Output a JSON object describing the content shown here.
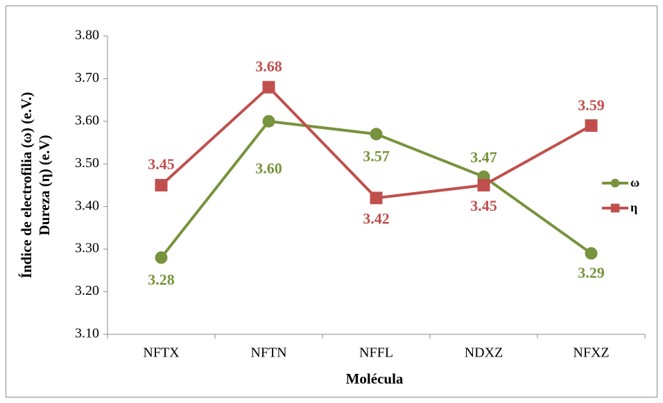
{
  "chart_data": {
    "type": "line",
    "xlabel": "Molécula",
    "ylabel": [
      "Índice de electrofilia (ω) (e.V.)",
      "Dureza (η) (e.V)"
    ],
    "categories": [
      "NFTX",
      "NFTN",
      "NFFL",
      "NDXZ",
      "NFXZ"
    ],
    "series": [
      {
        "name": "ω",
        "color": "#77933c",
        "marker": "circle",
        "values": [
          3.28,
          3.6,
          3.57,
          3.47,
          3.29
        ],
        "value_labels": [
          "3.28",
          "3.60",
          "3.57",
          "3.47",
          "3.29"
        ]
      },
      {
        "name": "η",
        "color": "#c0504d",
        "marker": "square",
        "values": [
          3.45,
          3.68,
          3.42,
          3.45,
          3.59
        ],
        "value_labels": [
          "3.45",
          "3.68",
          "3.42",
          "3.45",
          "3.59"
        ]
      }
    ],
    "ylim": [
      3.1,
      3.8
    ],
    "yticks": [
      {
        "value": 3.1,
        "label": "3.10"
      },
      {
        "value": 3.2,
        "label": "3.20"
      },
      {
        "value": 3.3,
        "label": "3.30"
      },
      {
        "value": 3.4,
        "label": "3.40"
      },
      {
        "value": 3.5,
        "label": "3.50"
      },
      {
        "value": 3.6,
        "label": "3.60"
      },
      {
        "value": 3.7,
        "label": "3.70"
      },
      {
        "value": 3.8,
        "label": "3.80"
      }
    ],
    "grid": false,
    "legend": "right"
  }
}
